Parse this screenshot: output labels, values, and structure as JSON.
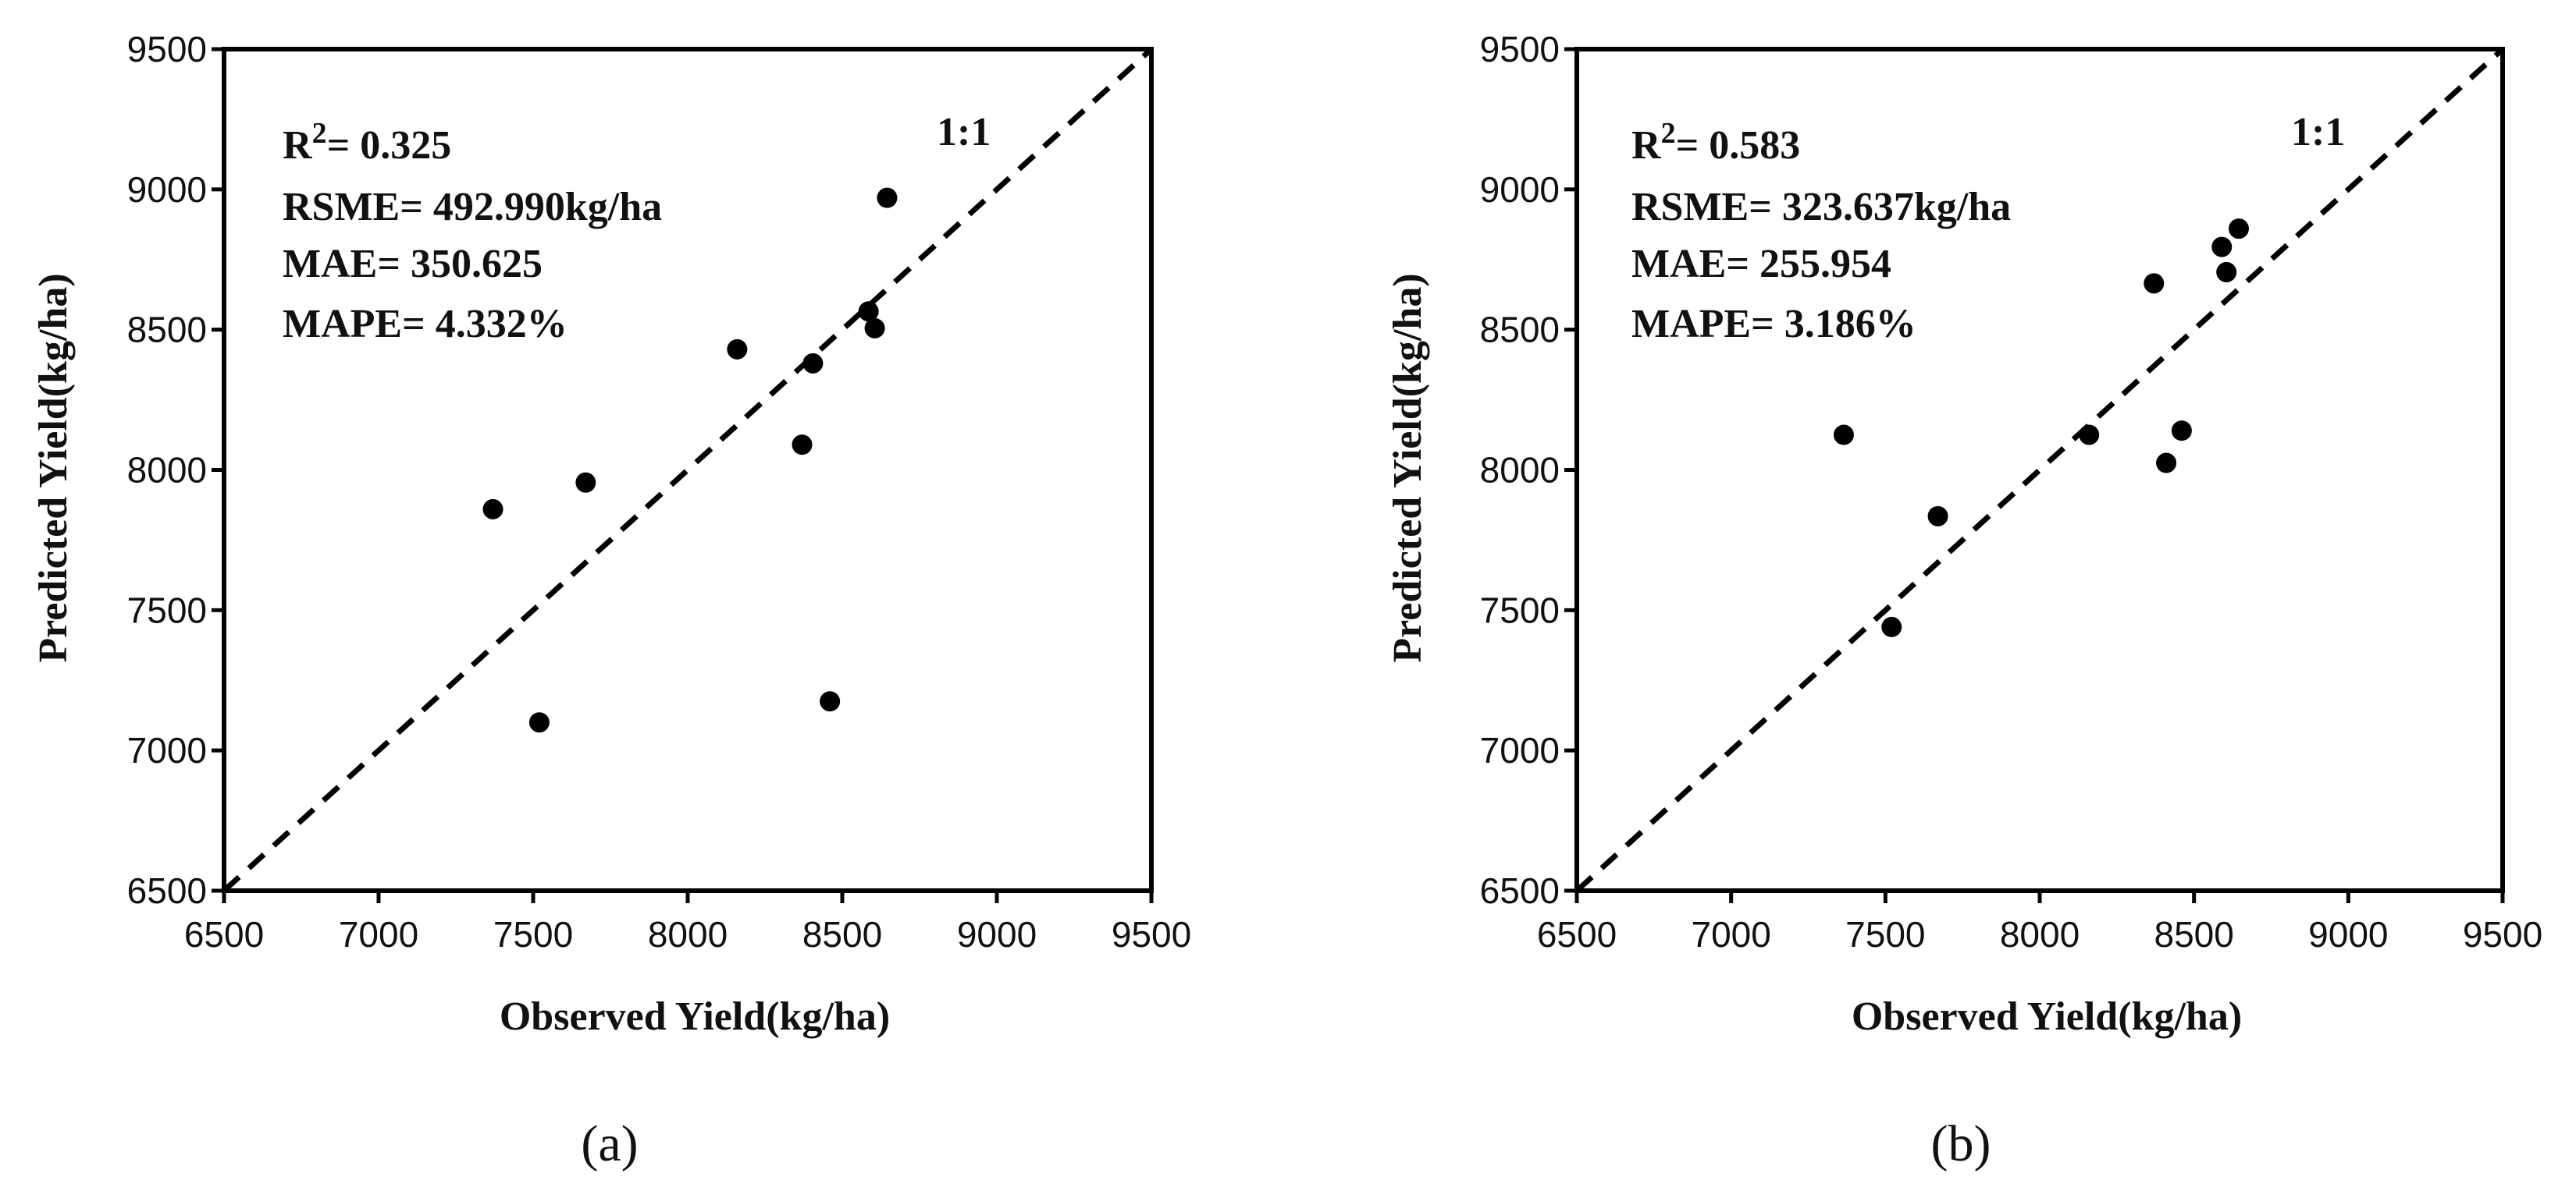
{
  "chart_data": [
    {
      "type": "scatter",
      "panel_label": "(a)",
      "xlabel": "Observed Yield(kg/ha)",
      "ylabel": "Predicted Yield(kg/ha)",
      "xlim": [
        6500,
        9500
      ],
      "ylim": [
        6500,
        9500
      ],
      "x_ticks": [
        "6500",
        "7000",
        "7500",
        "8000",
        "8500",
        "9000",
        "9500"
      ],
      "y_ticks": [
        "6500",
        "7000",
        "7500",
        "8000",
        "8500",
        "9000",
        "9500"
      ],
      "reference_line_label": "1:1",
      "stats": {
        "r2_prefix": "R",
        "r2_sup": "2",
        "r2_value": "= 0.325",
        "rsme": "RSME= 492.990kg/ha",
        "mae": "MAE= 350.625",
        "mape": "MAPE= 4.332%"
      },
      "points": [
        {
          "x": 7370,
          "y": 7860
        },
        {
          "x": 7520,
          "y": 7100
        },
        {
          "x": 7670,
          "y": 7955
        },
        {
          "x": 8160,
          "y": 8430
        },
        {
          "x": 8370,
          "y": 8090
        },
        {
          "x": 8405,
          "y": 8380
        },
        {
          "x": 8460,
          "y": 7175
        },
        {
          "x": 8585,
          "y": 8565
        },
        {
          "x": 8605,
          "y": 8505
        },
        {
          "x": 8645,
          "y": 8970
        }
      ],
      "grid": false,
      "marker_color": "#000000"
    },
    {
      "type": "scatter",
      "panel_label": "(b)",
      "xlabel": "Observed Yield(kg/ha)",
      "ylabel": "Predicted Yield(kg/ha)",
      "xlim": [
        6500,
        9500
      ],
      "ylim": [
        6500,
        9500
      ],
      "x_ticks": [
        "6500",
        "7000",
        "7500",
        "8000",
        "8500",
        "9000",
        "9500"
      ],
      "y_ticks": [
        "6500",
        "7000",
        "7500",
        "8000",
        "8500",
        "9000",
        "9500"
      ],
      "reference_line_label": "1:1",
      "stats": {
        "r2_prefix": "R",
        "r2_sup": "2",
        "r2_value": "= 0.583",
        "rsme": "RSME= 323.637kg/ha",
        "mae": "MAE= 255.954",
        "mape": "MAPE= 3.186%"
      },
      "points": [
        {
          "x": 7365,
          "y": 8125
        },
        {
          "x": 7520,
          "y": 7440
        },
        {
          "x": 7670,
          "y": 7835
        },
        {
          "x": 8160,
          "y": 8125
        },
        {
          "x": 8370,
          "y": 8665
        },
        {
          "x": 8410,
          "y": 8025
        },
        {
          "x": 8460,
          "y": 8140
        },
        {
          "x": 8590,
          "y": 8795
        },
        {
          "x": 8605,
          "y": 8705
        },
        {
          "x": 8645,
          "y": 8860
        }
      ],
      "grid": false,
      "marker_color": "#000000"
    }
  ]
}
